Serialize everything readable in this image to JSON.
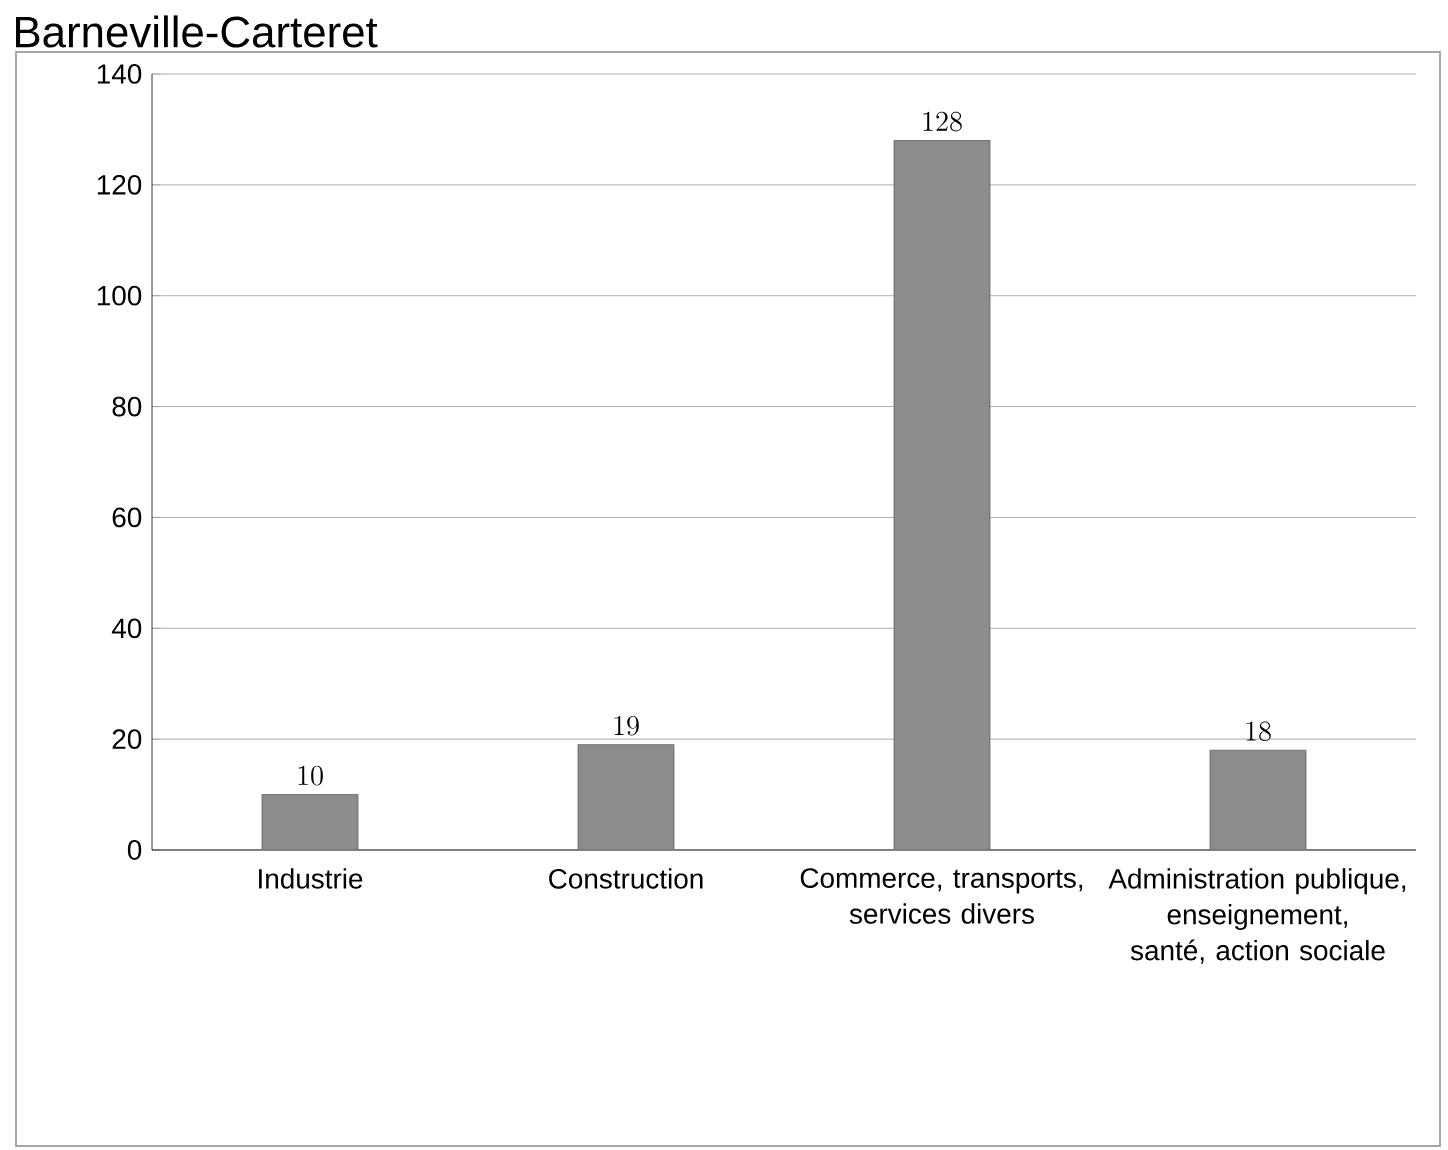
{
  "chart_data": {
    "type": "bar",
    "title": "Barneville-Carteret",
    "categories": [
      "Industrie",
      "Construction",
      "Commerce, transports, services divers",
      "Administration publique, enseignement, santé, action sociale"
    ],
    "values": [
      10,
      19,
      128,
      18
    ],
    "color": "#8c8c8c",
    "ylim": [
      0,
      140
    ],
    "yticks": [
      0,
      20,
      40,
      60,
      80,
      100,
      120,
      140
    ],
    "grid": "y",
    "data_labels": true
  }
}
